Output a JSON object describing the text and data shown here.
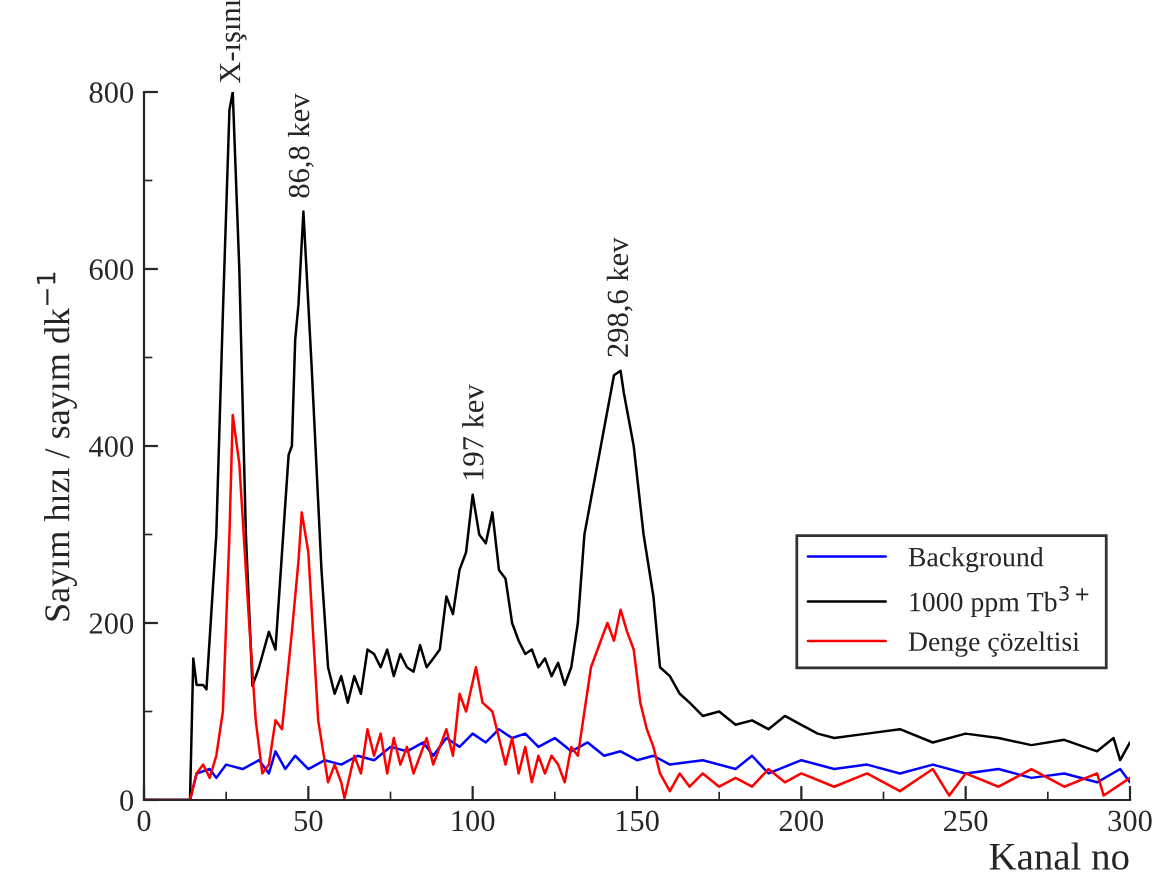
{
  "chart_data": {
    "type": "line",
    "xlabel": "Kanal no",
    "ylabel": "Sayım hızı / sayım dk$^{−1}$",
    "xlim": [
      0,
      300
    ],
    "xticks": [
      0,
      50,
      100,
      150,
      200,
      250,
      300
    ],
    "ylim": [
      0,
      800
    ],
    "yticks": [
      0,
      200,
      400,
      600,
      800
    ],
    "grid": false,
    "legend": "right",
    "marker": "none",
    "line_style": "solid",
    "annotations": [
      {
        "text": "X-ışını",
        "x": 27,
        "y": 800
      },
      {
        "text": "86,8 kev",
        "x": 48,
        "y": 670
      },
      {
        "text": "197 kev",
        "x": 101,
        "y": 350
      },
      {
        "text": "298,6 kev",
        "x": 145,
        "y": 490
      }
    ],
    "series": [
      {
        "name": "Background",
        "color": "#0000ff",
        "x": [
          0,
          14,
          16,
          20,
          22,
          25,
          30,
          35,
          38,
          40,
          43,
          46,
          50,
          55,
          60,
          65,
          70,
          75,
          80,
          85,
          88,
          92,
          96,
          100,
          104,
          108,
          112,
          116,
          120,
          125,
          130,
          135,
          140,
          145,
          150,
          155,
          160,
          170,
          180,
          185,
          190,
          200,
          210,
          220,
          230,
          240,
          250,
          260,
          270,
          280,
          290,
          297,
          300
        ],
        "values": [
          0,
          0,
          30,
          35,
          25,
          40,
          35,
          45,
          30,
          55,
          35,
          50,
          35,
          45,
          40,
          50,
          45,
          60,
          55,
          65,
          50,
          70,
          60,
          75,
          65,
          80,
          70,
          75,
          60,
          70,
          55,
          65,
          50,
          55,
          45,
          50,
          40,
          45,
          35,
          50,
          30,
          45,
          35,
          40,
          30,
          40,
          30,
          35,
          25,
          30,
          20,
          35,
          20
        ]
      },
      {
        "name": "1000 ppm Tb$^{3+}$",
        "color": "#000000",
        "x": [
          0,
          14,
          15,
          16,
          18,
          19,
          22,
          24,
          26,
          27,
          29,
          31,
          33,
          35,
          38,
          40,
          44,
          45,
          46,
          47,
          48.5,
          51,
          54,
          56,
          58,
          60,
          62,
          64,
          66,
          68,
          70,
          72,
          74,
          76,
          78,
          80,
          82,
          84,
          86,
          88,
          90,
          92,
          94,
          96,
          98,
          100,
          102,
          104,
          106,
          108,
          110,
          112,
          114,
          116,
          118,
          120,
          122,
          124,
          126,
          128,
          130,
          132,
          134,
          136,
          138,
          140,
          143,
          145,
          146,
          149,
          152,
          155,
          157,
          160,
          163,
          166,
          170,
          175,
          180,
          185,
          190,
          195,
          200,
          205,
          210,
          220,
          230,
          240,
          250,
          260,
          270,
          280,
          290,
          295,
          297,
          300
        ],
        "values": [
          0,
          0,
          160,
          130,
          130,
          125,
          300,
          550,
          780,
          800,
          600,
          300,
          129,
          150,
          190,
          170,
          390,
          400,
          520,
          560,
          665,
          490,
          260,
          150,
          120,
          140,
          110,
          140,
          120,
          170,
          165,
          150,
          170,
          140,
          165,
          150,
          145,
          175,
          150,
          160,
          170,
          230,
          210,
          260,
          280,
          345,
          300,
          290,
          325,
          260,
          250,
          200,
          180,
          165,
          170,
          150,
          160,
          140,
          155,
          130,
          150,
          200,
          300,
          340,
          380,
          420,
          480,
          485,
          460,
          400,
          300,
          230,
          150,
          140,
          120,
          110,
          95,
          100,
          85,
          90,
          80,
          95,
          85,
          75,
          70,
          75,
          80,
          65,
          75,
          70,
          62,
          68,
          55,
          70,
          45,
          65
        ]
      },
      {
        "name": "Denge çözeltisi",
        "color": "#ff0000",
        "x": [
          0,
          14,
          16,
          18,
          20,
          22,
          24,
          26,
          27,
          29,
          32,
          34,
          36,
          38,
          40,
          42,
          45,
          47,
          48,
          50,
          53,
          56,
          58,
          60,
          61,
          64,
          66,
          68,
          70,
          72,
          74,
          76,
          78,
          80,
          82,
          84,
          86,
          88,
          90,
          92,
          94,
          96,
          98,
          101,
          103,
          106,
          108,
          110,
          112,
          114,
          116,
          118,
          120,
          122,
          124,
          126,
          128,
          130,
          132,
          134,
          136,
          138,
          141,
          143,
          145,
          147,
          149,
          151,
          153,
          155,
          157,
          160,
          163,
          166,
          170,
          175,
          180,
          185,
          190,
          195,
          200,
          210,
          220,
          230,
          240,
          245,
          250,
          260,
          270,
          280,
          290,
          292,
          300
        ],
        "values": [
          0,
          0,
          30,
          40,
          25,
          50,
          100,
          300,
          435,
          380,
          200,
          90,
          30,
          40,
          90,
          80,
          190,
          270,
          325,
          280,
          90,
          20,
          40,
          20,
          2,
          50,
          30,
          80,
          50,
          75,
          30,
          70,
          40,
          60,
          30,
          50,
          70,
          40,
          60,
          80,
          50,
          120,
          100,
          150,
          110,
          100,
          70,
          40,
          70,
          30,
          60,
          20,
          50,
          30,
          50,
          40,
          20,
          60,
          50,
          100,
          150,
          170,
          200,
          180,
          215,
          190,
          170,
          110,
          80,
          60,
          30,
          10,
          30,
          15,
          30,
          15,
          25,
          15,
          35,
          20,
          30,
          15,
          30,
          10,
          35,
          5,
          30,
          15,
          35,
          15,
          30,
          5,
          25
        ]
      }
    ]
  }
}
